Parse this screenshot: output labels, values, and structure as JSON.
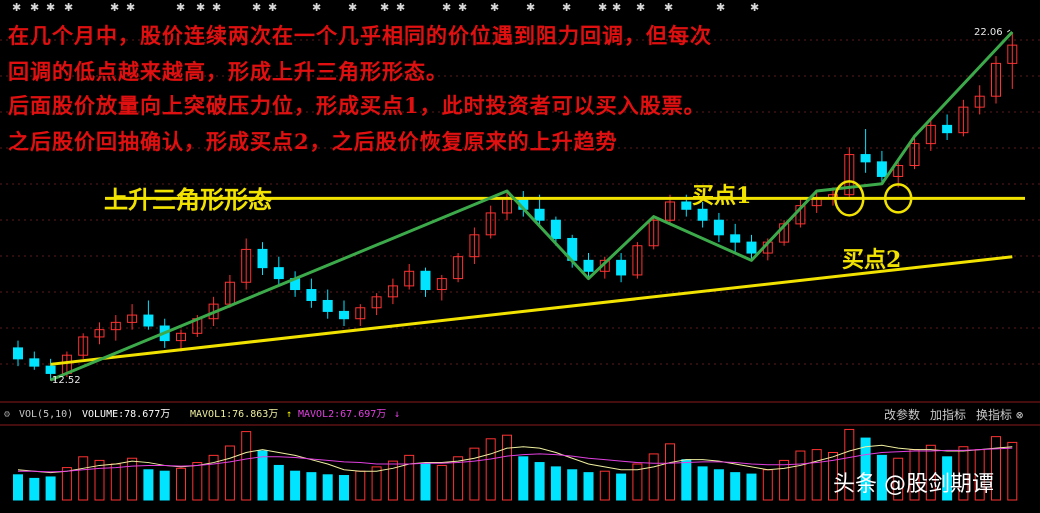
{
  "annotations": {
    "line1": "在几个月中，股价连续两次在一个几乎相同的价位遇到阻力回调，但每次",
    "line2": "回调的低点越来越高，形成上升三角形形态。",
    "line3": "后面股价放量向上突破压力位，形成买点1，此时投资者可以买入股票。",
    "line4": "之后股价回抽确认，形成买点2，之后股价恢复原来的上升趋势",
    "pattern_label": "上升三角形形态",
    "buy_point_1": "买点1",
    "buy_point_2": "买点2"
  },
  "price": {
    "low_label": "12.52",
    "high_label": "22.06"
  },
  "volume_bar": {
    "indicator": "VOL(5,10)",
    "volume": "VOLUME:78.677万",
    "mavol1": "MAVOL1:76.863万",
    "mavol2": "MAVOL2:67.697万",
    "btn_params": "改参数",
    "btn_add": "加指标",
    "btn_switch": "换指标"
  },
  "watermark": "头条 @股剑期谭",
  "colors": {
    "up_candle": "#ff3232",
    "down_candle": "#00e4ff",
    "trend_line": "#3caa4a",
    "support_resistance": "#f2e200",
    "annotation_text": "#e01010",
    "mavol1": "#f0f0a0",
    "mavol2": "#e040e0"
  },
  "chart_data": {
    "type": "candlestick",
    "ohlc": [
      [
        13.4,
        13.6,
        12.9,
        13.1
      ],
      [
        13.1,
        13.3,
        12.8,
        12.9
      ],
      [
        12.9,
        13.1,
        12.52,
        12.7
      ],
      [
        12.7,
        13.3,
        12.6,
        13.2
      ],
      [
        13.2,
        13.8,
        13.1,
        13.7
      ],
      [
        13.7,
        14.1,
        13.5,
        13.9
      ],
      [
        13.9,
        14.3,
        13.6,
        14.1
      ],
      [
        14.1,
        14.6,
        13.9,
        14.3
      ],
      [
        14.3,
        14.7,
        13.9,
        14.0
      ],
      [
        14.0,
        14.2,
        13.4,
        13.6
      ],
      [
        13.6,
        13.9,
        13.3,
        13.8
      ],
      [
        13.8,
        14.3,
        13.7,
        14.2
      ],
      [
        14.2,
        14.8,
        14.0,
        14.6
      ],
      [
        14.6,
        15.4,
        14.5,
        15.2
      ],
      [
        15.2,
        16.4,
        15.0,
        16.1
      ],
      [
        16.1,
        16.3,
        15.4,
        15.6
      ],
      [
        15.6,
        15.9,
        15.1,
        15.3
      ],
      [
        15.3,
        15.5,
        14.8,
        15.0
      ],
      [
        15.0,
        15.3,
        14.5,
        14.7
      ],
      [
        14.7,
        15.0,
        14.2,
        14.4
      ],
      [
        14.4,
        14.7,
        14.0,
        14.2
      ],
      [
        14.2,
        14.6,
        14.0,
        14.5
      ],
      [
        14.5,
        14.9,
        14.3,
        14.8
      ],
      [
        14.8,
        15.3,
        14.6,
        15.1
      ],
      [
        15.1,
        15.7,
        15.0,
        15.5
      ],
      [
        15.5,
        15.6,
        14.8,
        15.0
      ],
      [
        15.0,
        15.4,
        14.7,
        15.3
      ],
      [
        15.3,
        16.0,
        15.2,
        15.9
      ],
      [
        15.9,
        16.7,
        15.7,
        16.5
      ],
      [
        16.5,
        17.3,
        16.4,
        17.1
      ],
      [
        17.1,
        17.7,
        16.9,
        17.5
      ],
      [
        17.5,
        17.7,
        17.0,
        17.2
      ],
      [
        17.2,
        17.6,
        16.7,
        16.9
      ],
      [
        16.9,
        17.0,
        16.2,
        16.4
      ],
      [
        16.4,
        16.5,
        15.6,
        15.8
      ],
      [
        15.8,
        16.0,
        15.3,
        15.5
      ],
      [
        15.5,
        15.9,
        15.3,
        15.8
      ],
      [
        15.8,
        16.0,
        15.2,
        15.4
      ],
      [
        15.4,
        16.3,
        15.3,
        16.2
      ],
      [
        16.2,
        17.0,
        16.1,
        16.9
      ],
      [
        16.9,
        17.6,
        16.8,
        17.4
      ],
      [
        17.4,
        17.6,
        17.0,
        17.2
      ],
      [
        17.2,
        17.4,
        16.7,
        16.9
      ],
      [
        16.9,
        17.1,
        16.3,
        16.5
      ],
      [
        16.5,
        16.8,
        16.0,
        16.3
      ],
      [
        16.3,
        16.5,
        15.8,
        16.0
      ],
      [
        16.0,
        16.4,
        15.8,
        16.3
      ],
      [
        16.3,
        16.9,
        16.2,
        16.8
      ],
      [
        16.8,
        17.5,
        16.7,
        17.3
      ],
      [
        17.3,
        17.7,
        17.1,
        17.5
      ],
      [
        17.5,
        17.8,
        17.3,
        17.6
      ],
      [
        17.6,
        18.9,
        17.5,
        18.7
      ],
      [
        18.7,
        19.4,
        18.2,
        18.5
      ],
      [
        18.5,
        18.8,
        17.9,
        18.1
      ],
      [
        18.1,
        18.6,
        17.8,
        18.4
      ],
      [
        18.4,
        19.2,
        18.3,
        19.0
      ],
      [
        19.0,
        19.7,
        18.8,
        19.5
      ],
      [
        19.5,
        19.8,
        19.1,
        19.3
      ],
      [
        19.3,
        20.2,
        19.2,
        20.0
      ],
      [
        20.0,
        20.6,
        19.8,
        20.3
      ],
      [
        20.3,
        21.4,
        20.1,
        21.2
      ],
      [
        21.2,
        22.06,
        20.5,
        21.7
      ]
    ],
    "volume_level": [
      0.35,
      0.3,
      0.32,
      0.45,
      0.6,
      0.55,
      0.5,
      0.58,
      0.42,
      0.4,
      0.44,
      0.52,
      0.62,
      0.75,
      0.95,
      0.68,
      0.48,
      0.4,
      0.38,
      0.35,
      0.34,
      0.4,
      0.46,
      0.54,
      0.62,
      0.5,
      0.48,
      0.6,
      0.72,
      0.85,
      0.9,
      0.6,
      0.52,
      0.46,
      0.42,
      0.38,
      0.4,
      0.36,
      0.5,
      0.64,
      0.78,
      0.56,
      0.46,
      0.42,
      0.38,
      0.36,
      0.42,
      0.55,
      0.68,
      0.7,
      0.66,
      0.98,
      0.86,
      0.62,
      0.58,
      0.7,
      0.76,
      0.6,
      0.74,
      0.7,
      0.88,
      0.8
    ],
    "mavol1_level": [
      0.42,
      0.4,
      0.38,
      0.4,
      0.44,
      0.48,
      0.5,
      0.54,
      0.52,
      0.48,
      0.46,
      0.48,
      0.52,
      0.58,
      0.66,
      0.7,
      0.66,
      0.62,
      0.56,
      0.5,
      0.42,
      0.4,
      0.4,
      0.44,
      0.5,
      0.52,
      0.52,
      0.54,
      0.58,
      0.64,
      0.72,
      0.74,
      0.72,
      0.66,
      0.58,
      0.5,
      0.46,
      0.42,
      0.42,
      0.46,
      0.52,
      0.56,
      0.56,
      0.54,
      0.5,
      0.46,
      0.42,
      0.44,
      0.48,
      0.54,
      0.6,
      0.68,
      0.74,
      0.76,
      0.72,
      0.7,
      0.7,
      0.68,
      0.68,
      0.7,
      0.72,
      0.74
    ],
    "mavol2_level": [
      0.4,
      0.4,
      0.39,
      0.4,
      0.42,
      0.44,
      0.45,
      0.47,
      0.48,
      0.48,
      0.47,
      0.48,
      0.5,
      0.53,
      0.57,
      0.6,
      0.6,
      0.59,
      0.57,
      0.55,
      0.53,
      0.52,
      0.5,
      0.5,
      0.5,
      0.51,
      0.51,
      0.52,
      0.54,
      0.57,
      0.61,
      0.63,
      0.64,
      0.63,
      0.61,
      0.58,
      0.56,
      0.54,
      0.52,
      0.51,
      0.51,
      0.52,
      0.53,
      0.53,
      0.52,
      0.5,
      0.49,
      0.49,
      0.5,
      0.52,
      0.55,
      0.59,
      0.63,
      0.66,
      0.67,
      0.68,
      0.68,
      0.69,
      0.69,
      0.7,
      0.71,
      0.72
    ],
    "trend_path_idx": [
      2,
      30,
      35,
      39,
      45,
      49,
      53,
      55,
      61
    ],
    "resistance_level": 17.5,
    "support_line": [
      [
        2,
        12.95
      ],
      [
        61,
        15.9
      ]
    ],
    "buy_point_idx": [
      51,
      54
    ]
  }
}
